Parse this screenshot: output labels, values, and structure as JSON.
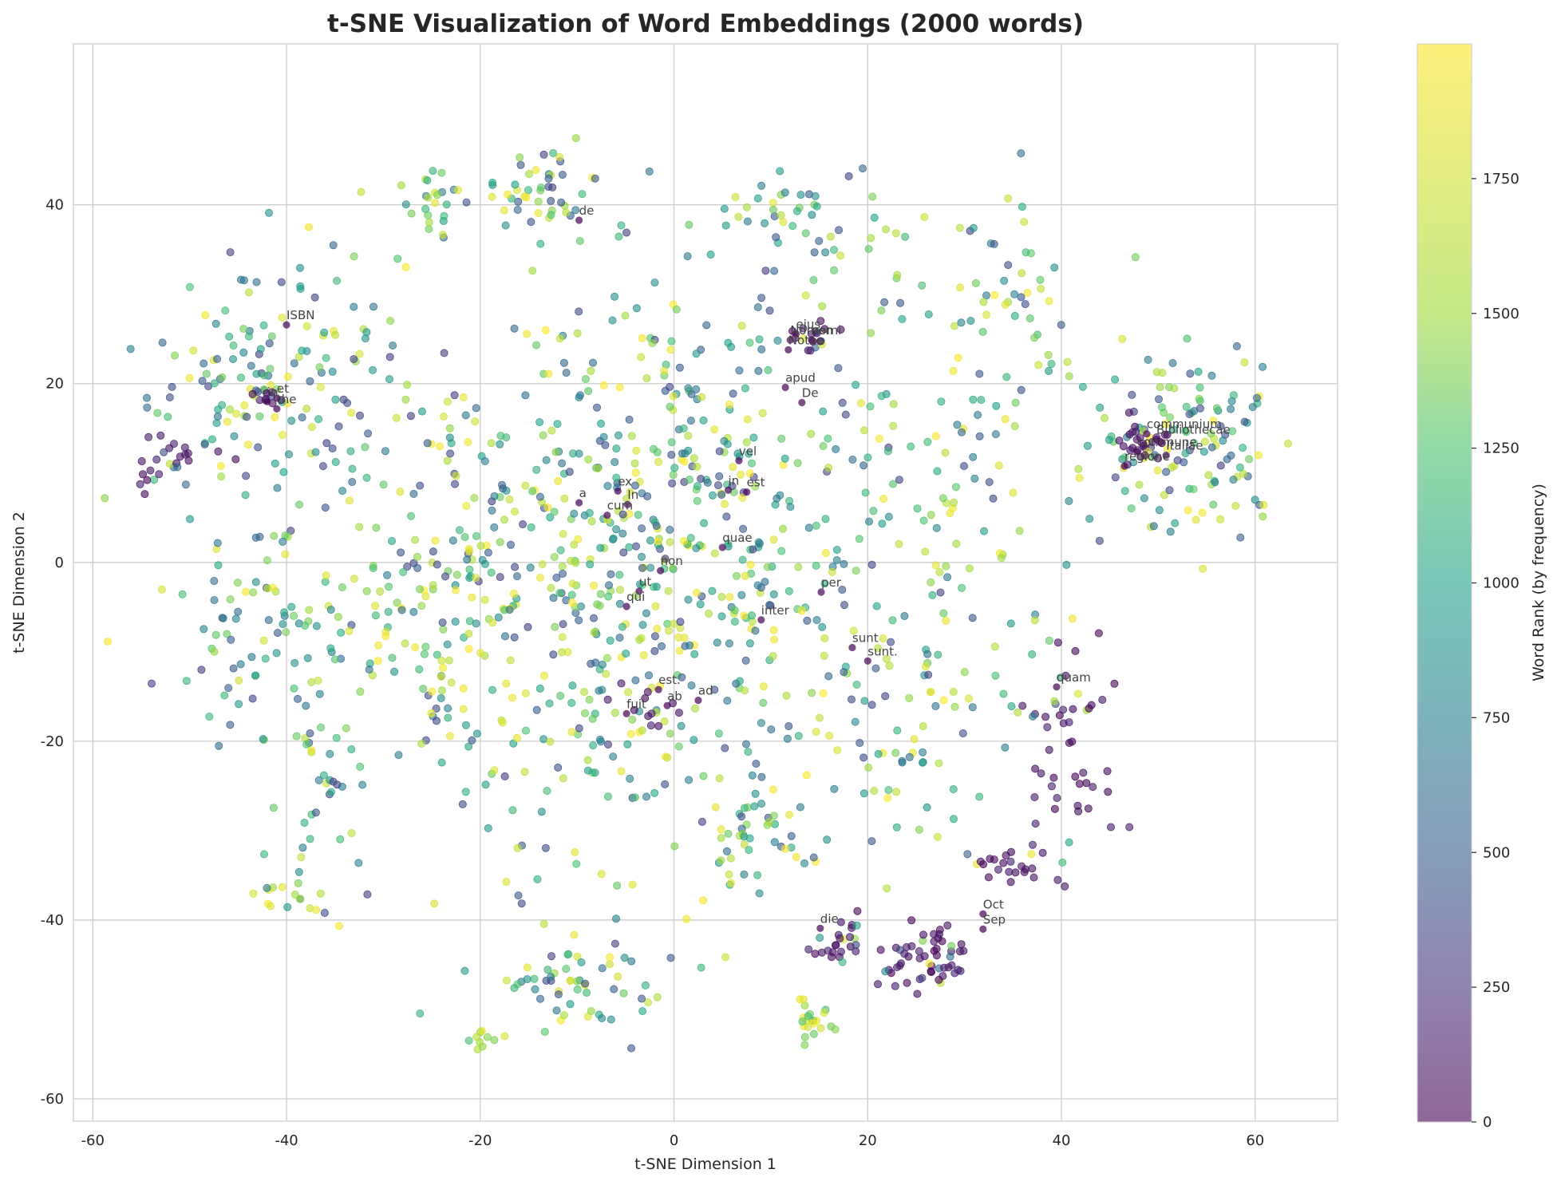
{
  "chart_data": {
    "type": "scatter",
    "title": "t-SNE Visualization of Word Embeddings (2000 words)",
    "xlabel": "t-SNE Dimension 1",
    "ylabel": "t-SNE Dimension 2",
    "xlim": [
      -62,
      68.5
    ],
    "ylim": [
      -62.5,
      58
    ],
    "xticks": [
      -60,
      -40,
      -20,
      0,
      20,
      40,
      60
    ],
    "yticks": [
      -60,
      -40,
      -20,
      0,
      20,
      40
    ],
    "xtick_labels": [
      "-60",
      "-40",
      "-20",
      "0",
      "20",
      "40",
      "60"
    ],
    "ytick_labels": [
      "-60",
      "-40",
      "-20",
      "0",
      "20",
      "40"
    ],
    "grid": true,
    "colorbar": {
      "label": "Word Rank (by frequency)",
      "colormap": "viridis",
      "range": [
        0,
        2000
      ],
      "ticks": [
        0,
        250,
        500,
        750,
        1000,
        1250,
        1500,
        1750
      ],
      "tick_labels": [
        "0",
        "250",
        "500",
        "750",
        "1000",
        "1250",
        "1500",
        "1750"
      ]
    },
    "point_count": 2000,
    "point_opacity": 0.6,
    "clusters": [
      {
        "cx": -10,
        "cy": -2,
        "sx": 16,
        "sy": 16,
        "n": 620,
        "rank": "mixed"
      },
      {
        "cx": 4,
        "cy": 10,
        "sx": 12,
        "sy": 12,
        "n": 200,
        "rank": "mixed"
      },
      {
        "cx": -44,
        "cy": 20,
        "sx": 5,
        "sy": 6,
        "n": 110,
        "rank": "mixed"
      },
      {
        "cx": -52,
        "cy": 11,
        "sx": 2.5,
        "sy": 1.8,
        "n": 22,
        "rank": "low"
      },
      {
        "cx": -43,
        "cy": -8,
        "sx": 4,
        "sy": 6,
        "n": 70,
        "rank": "mixed"
      },
      {
        "cx": -36,
        "cy": -24,
        "sx": 3,
        "sy": 5,
        "n": 35,
        "rank": "mixed"
      },
      {
        "cx": -39,
        "cy": -37,
        "sx": 2,
        "sy": 1,
        "n": 16,
        "rank": "mixed"
      },
      {
        "cx": 53,
        "cy": 13,
        "sx": 5.5,
        "sy": 5.5,
        "n": 130,
        "rank": "mixed"
      },
      {
        "cx": 48.5,
        "cy": 13.5,
        "sx": 1.4,
        "sy": 1.2,
        "n": 28,
        "rank": "low"
      },
      {
        "cx": 34,
        "cy": 30,
        "sx": 4,
        "sy": 6,
        "n": 55,
        "rank": "mixed"
      },
      {
        "cx": 26,
        "cy": -44,
        "sx": 2.5,
        "sy": 2,
        "n": 55,
        "rank": "low"
      },
      {
        "cx": 41,
        "cy": -21,
        "sx": 3,
        "sy": 8,
        "n": 50,
        "rank": "low"
      },
      {
        "cx": 35,
        "cy": -34,
        "sx": 2.5,
        "sy": 1.5,
        "n": 22,
        "rank": "low"
      },
      {
        "cx": 17,
        "cy": -42,
        "sx": 1.5,
        "sy": 1.5,
        "n": 25,
        "rank": "low"
      },
      {
        "cx": -10,
        "cy": -47,
        "sx": 3.5,
        "sy": 2.5,
        "n": 55,
        "rank": "mixed"
      },
      {
        "cx": 14,
        "cy": -51,
        "sx": 1.5,
        "sy": 1.2,
        "n": 22,
        "rank": "high"
      },
      {
        "cx": -20,
        "cy": -53,
        "sx": 1.5,
        "sy": 0.6,
        "n": 10,
        "rank": "high"
      },
      {
        "cx": -14,
        "cy": 42,
        "sx": 3,
        "sy": 2.5,
        "n": 45,
        "rank": "mixed"
      },
      {
        "cx": -24,
        "cy": 40,
        "sx": 2,
        "sy": 2,
        "n": 25,
        "rank": "mixed"
      },
      {
        "cx": 10,
        "cy": 40,
        "sx": 3,
        "sy": 2,
        "n": 20,
        "rank": "mixed"
      },
      {
        "cx": 18,
        "cy": 36,
        "sx": 4,
        "sy": 2.5,
        "n": 25,
        "rank": "mixed"
      },
      {
        "cx": 14,
        "cy": 25,
        "sx": 2,
        "sy": 1,
        "n": 14,
        "rank": "low"
      },
      {
        "cx": 8,
        "cy": -31,
        "sx": 3,
        "sy": 3,
        "n": 35,
        "rank": "mixed"
      },
      {
        "cx": 28,
        "cy": 6,
        "sx": 6,
        "sy": 7,
        "n": 55,
        "rank": "mixed"
      },
      {
        "cx": 28,
        "cy": -12,
        "sx": 5,
        "sy": 5,
        "n": 35,
        "rank": "mixed"
      },
      {
        "cx": -2,
        "cy": -16,
        "sx": 2,
        "sy": 1.2,
        "n": 14,
        "rank": "low"
      },
      {
        "cx": -42,
        "cy": 18.5,
        "sx": 1,
        "sy": 0.6,
        "n": 10,
        "rank": "low"
      },
      {
        "cx": -26,
        "cy": -5,
        "sx": 3,
        "sy": 6,
        "n": 35,
        "rank": "mixed"
      },
      {
        "cx": 20,
        "cy": -22,
        "sx": 6,
        "sy": 6,
        "n": 45,
        "rank": "mixed"
      },
      {
        "cx": -33,
        "cy": 20,
        "sx": 4,
        "sy": 8,
        "n": 33,
        "rank": "mixed"
      }
    ],
    "annotations": [
      {
        "text": "de",
        "x": -9.8,
        "y": 38.9
      },
      {
        "text": "ISBN",
        "x": -40,
        "y": 27.2
      },
      {
        "text": "et",
        "x": -41,
        "y": 19.0
      },
      {
        "text": "in",
        "x": -42,
        "y": 18.6
      },
      {
        "text": "the",
        "x": -41,
        "y": 17.8
      },
      {
        "text": "eius",
        "x": 12.6,
        "y": 26.2
      },
      {
        "text": "Nomen",
        "x": 12.0,
        "y": 25.5
      },
      {
        "text": "nomi",
        "x": 14.2,
        "y": 25.5
      },
      {
        "text": "Notae",
        "x": 11.8,
        "y": 24.4
      },
      {
        "text": "apud",
        "x": 11.5,
        "y": 20.2
      },
      {
        "text": "De",
        "x": 13.2,
        "y": 18.5
      },
      {
        "text": "vel",
        "x": 6.7,
        "y": 12.0
      },
      {
        "text": "in",
        "x": 5.6,
        "y": 8.7
      },
      {
        "text": "est",
        "x": 7.5,
        "y": 8.5
      },
      {
        "text": "ex",
        "x": -5.8,
        "y": 8.6
      },
      {
        "text": "a",
        "x": -9.8,
        "y": 7.3
      },
      {
        "text": "In",
        "x": -4.8,
        "y": 7.1
      },
      {
        "text": "cum",
        "x": -6.9,
        "y": 5.9
      },
      {
        "text": "quae",
        "x": 5.0,
        "y": 2.3
      },
      {
        "text": "non",
        "x": -1.4,
        "y": -0.3
      },
      {
        "text": "ut",
        "x": -3.6,
        "y": -2.6
      },
      {
        "text": "per",
        "x": 15.2,
        "y": -2.7
      },
      {
        "text": "qui",
        "x": -4.9,
        "y": -4.3
      },
      {
        "text": "inter",
        "x": 9.0,
        "y": -5.8
      },
      {
        "text": "sunt",
        "x": 18.4,
        "y": -8.9
      },
      {
        "text": "sunt.",
        "x": 20.0,
        "y": -10.4
      },
      {
        "text": "quam",
        "x": 39.5,
        "y": -13.3
      },
      {
        "text": "est.",
        "x": -1.6,
        "y": -13.6
      },
      {
        "text": "ad",
        "x": 2.5,
        "y": -14.8
      },
      {
        "text": "ab",
        "x": -0.7,
        "y": -15.4
      },
      {
        "text": "fuit",
        "x": -4.9,
        "y": -16.3
      },
      {
        "text": "communium",
        "x": 48.8,
        "y": 15.0
      },
      {
        "text": "Bibliothecae",
        "x": 49.8,
        "y": 14.4
      },
      {
        "text": "commune",
        "x": 47.8,
        "y": 13.0
      },
      {
        "text": "Italiae",
        "x": 50.8,
        "y": 12.6
      },
      {
        "text": "regione",
        "x": 46.5,
        "y": 11.4
      },
      {
        "text": "Oct",
        "x": 31.9,
        "y": -38.7
      },
      {
        "text": "Sep",
        "x": 31.9,
        "y": -40.4
      },
      {
        "text": "die",
        "x": 15.1,
        "y": -40.3
      }
    ]
  }
}
